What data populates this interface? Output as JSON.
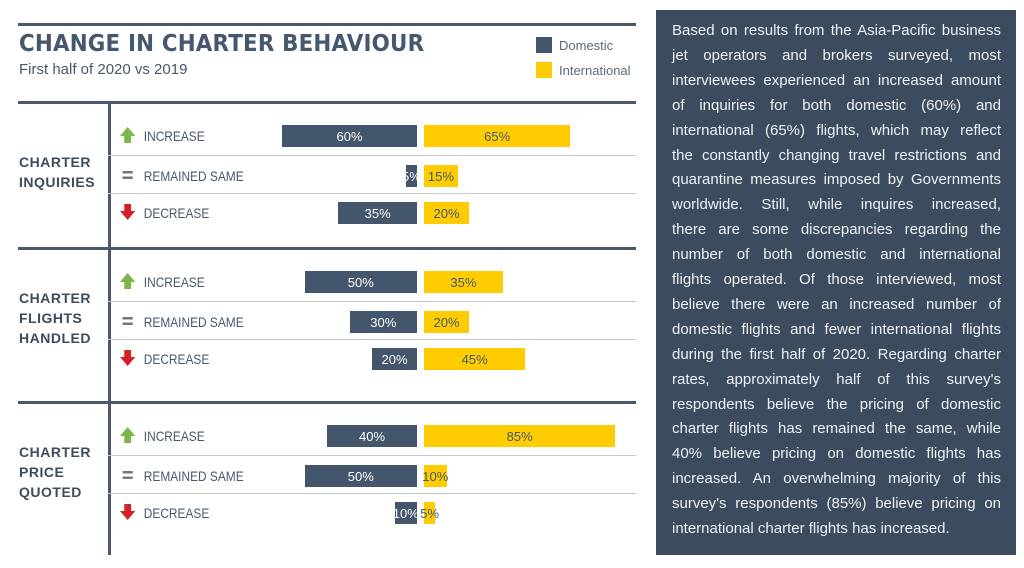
{
  "header": {
    "title": "CHANGE IN CHARTER BEHAVIOUR",
    "subtitle": "First half of 2020 vs 2019"
  },
  "colors": {
    "domestic": "#44566c",
    "international": "#fecc00",
    "increase_icon": "#7ab648",
    "decrease_icon": "#d42027",
    "equal_icon": "#777777"
  },
  "chart_data": {
    "type": "bar",
    "orientation": "horizontal-diverging",
    "legend": {
      "position": "top-right",
      "entries": [
        "Domestic",
        "International"
      ]
    },
    "row_labels": [
      "INCREASE",
      "REMAINED SAME",
      "DECREASE"
    ],
    "row_icons": [
      "arrow-up-icon",
      "equals-icon",
      "arrow-down-icon"
    ],
    "groups": [
      {
        "label": [
          "CHARTER",
          "INQUIRIES"
        ],
        "domestic": [
          60,
          5,
          35
        ],
        "international": [
          65,
          15,
          20
        ]
      },
      {
        "label": [
          "CHARTER",
          "FLIGHTS",
          "HANDLED"
        ],
        "domestic": [
          50,
          30,
          20
        ],
        "international": [
          35,
          20,
          45
        ]
      },
      {
        "label": [
          "CHARTER",
          "PRICE",
          "QUOTED"
        ],
        "domestic": [
          40,
          50,
          10
        ],
        "international": [
          85,
          10,
          5
        ]
      }
    ]
  },
  "panel": {
    "lines": [
      "Based on results from the Asia-Pacific business",
      "jet operators and brokers surveyed, most",
      "interviewees experienced an increased amount",
      "of inquiries for both domestic (60%) and",
      "international (65%) flights, which may reflect",
      "the constantly changing travel restrictions and",
      "quarantine measures imposed by Governments",
      "worldwide. Still, while inquires increased,",
      "there are some discrepancies regarding the",
      "number of both domestic and international",
      "flights operated. Of those interviewed, most",
      "believe there were an increased number of",
      "domestic flights and fewer international flights",
      "during the first half of 2020. Regarding charter",
      "rates, approximately half of this survey's",
      "respondents believe the pricing of domestic",
      "charter flights has remained the same, while",
      "40% believe pricing on domestic flights has",
      "increased. An overwhelming majority of this",
      "survey's respondents (85%) believe pricing on",
      "international charter flights has increased."
    ]
  }
}
